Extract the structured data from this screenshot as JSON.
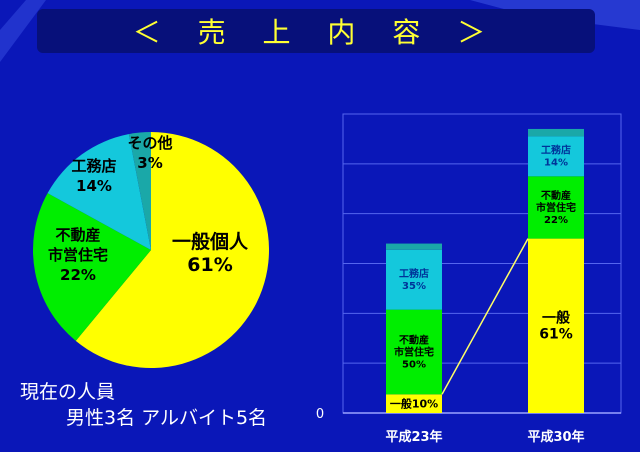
{
  "slide": {
    "title": "＜ 売 上 内 容 ＞",
    "staff_line1": "現在の人員",
    "staff_line2": "男性3名 アルバイト5名"
  },
  "colors": {
    "background": "#0a17b8",
    "title_bar": "#07107a",
    "title_text": "#ffff33",
    "general": "#ffff00",
    "real_estate": "#00ee00",
    "contractor": "#14c8dc",
    "other": "#1aa8a8",
    "connector": "#ffff66"
  },
  "chart_data": [
    {
      "type": "pie",
      "slices": [
        {
          "label_lines": [
            "一般個人",
            "61%"
          ],
          "value": 61,
          "color": "#ffff00"
        },
        {
          "label_lines": [
            "不動産",
            "市営住宅",
            "22%"
          ],
          "value": 22,
          "color": "#00ee00"
        },
        {
          "label_lines": [
            "工務店",
            "14%"
          ],
          "value": 14,
          "color": "#14c8dc"
        },
        {
          "label_lines": [
            "その他",
            "3%"
          ],
          "value": 3,
          "color": "#1aa8a8"
        }
      ]
    },
    {
      "type": "bar",
      "stacked": true,
      "categories": [
        "平成23年",
        "平成30年"
      ],
      "ylim": [
        0,
        120
      ],
      "grid": true,
      "y_tick_label": "0",
      "series": [
        {
          "key": "general",
          "color": "#ffff00",
          "values": [
            7.5,
            70
          ],
          "labels": [
            "一般10%",
            "一般\n61%"
          ]
        },
        {
          "key": "real_estate",
          "color": "#00ee00",
          "values": [
            34,
            25
          ],
          "labels": [
            "不動産\n市営住宅\n50%",
            "不動産\n市営住宅\n22%"
          ]
        },
        {
          "key": "contractor",
          "color": "#14c8dc",
          "values": [
            24,
            16
          ],
          "labels": [
            "工務店\n35%",
            "工務店\n14%"
          ]
        },
        {
          "key": "other",
          "color": "#1aa8a8",
          "values": [
            2.5,
            3
          ],
          "labels": [
            "",
            ""
          ]
        }
      ]
    }
  ]
}
